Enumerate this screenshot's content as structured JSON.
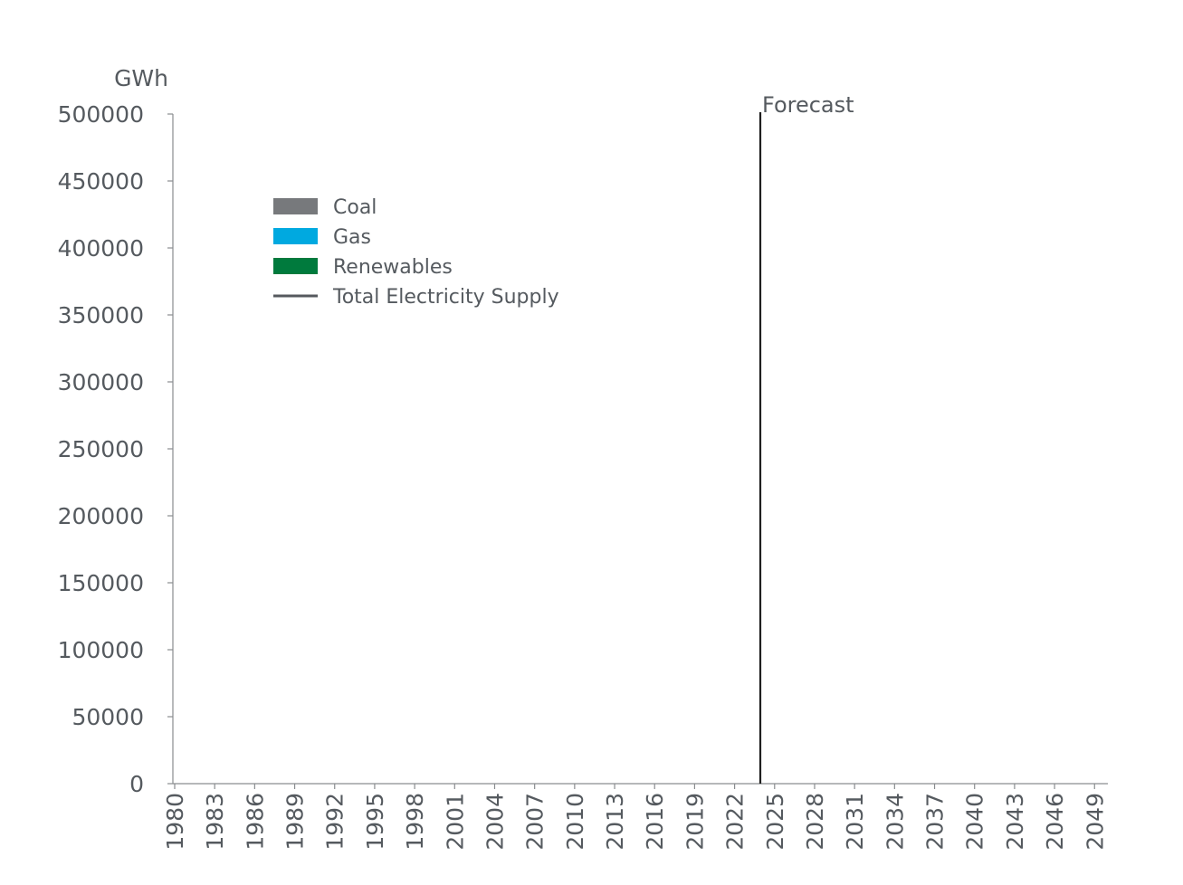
{
  "chart_data": {
    "type": "area",
    "ylabel": "GWh",
    "ylim": [
      0,
      500000
    ],
    "yticks": [
      0,
      50000,
      100000,
      150000,
      200000,
      250000,
      300000,
      350000,
      400000,
      450000,
      500000
    ],
    "xlim": [
      1980,
      2050
    ],
    "xticks": [
      1980,
      1983,
      1986,
      1989,
      1992,
      1995,
      1998,
      2001,
      2004,
      2007,
      2010,
      2013,
      2016,
      2019,
      2022,
      2025,
      2028,
      2031,
      2034,
      2037,
      2040,
      2043,
      2046,
      2049
    ],
    "forecast": {
      "x": 2024,
      "label": "Forecast"
    },
    "legend_position": "top-left",
    "series": [
      {
        "name": "Coal",
        "kind": "area",
        "color": "#77797c",
        "values": []
      },
      {
        "name": "Gas",
        "kind": "area",
        "color": "#00a9e0",
        "values": []
      },
      {
        "name": "Renewables",
        "kind": "area",
        "color": "#007a3d",
        "values": []
      },
      {
        "name": "Total Electricity Supply",
        "kind": "line",
        "color": "#55595e",
        "values": []
      }
    ],
    "grid": false
  }
}
